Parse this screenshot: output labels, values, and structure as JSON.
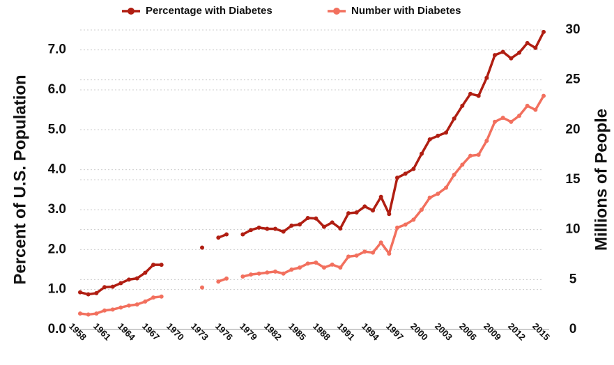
{
  "chart_data": {
    "type": "line",
    "y_label": "Percent of U.S. Population",
    "y2_label": "Millions of People",
    "x": [
      1958,
      1959,
      1960,
      1961,
      1962,
      1963,
      1964,
      1965,
      1966,
      1967,
      1968,
      1969,
      1970,
      1971,
      1972,
      1973,
      1974,
      1975,
      1976,
      1977,
      1978,
      1979,
      1980,
      1981,
      1982,
      1983,
      1984,
      1985,
      1986,
      1987,
      1988,
      1989,
      1990,
      1991,
      1992,
      1993,
      1994,
      1995,
      1996,
      1997,
      1998,
      1999,
      2000,
      2001,
      2002,
      2003,
      2004,
      2005,
      2006,
      2007,
      2008,
      2009,
      2010,
      2011,
      2012,
      2013,
      2014,
      2015
    ],
    "series": [
      {
        "name": "Percentage with Diabetes",
        "color": "#b01e12",
        "axis": "y",
        "values": [
          0.93,
          0.88,
          0.91,
          1.06,
          1.07,
          1.16,
          1.25,
          1.28,
          1.42,
          1.62,
          1.62,
          null,
          null,
          null,
          null,
          2.05,
          null,
          2.3,
          2.38,
          null,
          2.38,
          2.49,
          2.55,
          2.52,
          2.52,
          2.45,
          2.6,
          2.63,
          2.79,
          2.78,
          2.57,
          2.68,
          2.53,
          2.91,
          2.93,
          3.08,
          2.98,
          3.32,
          2.89,
          3.8,
          3.9,
          4.02,
          4.4,
          4.76,
          4.85,
          4.93,
          5.28,
          5.6,
          5.9,
          5.85,
          6.3,
          6.87,
          6.95,
          6.79,
          6.93,
          7.17,
          7.05,
          7.45
        ]
      },
      {
        "name": "Number with Diabetes",
        "color": "#f2705e",
        "axis": "y2",
        "values": [
          1.6,
          1.5,
          1.6,
          1.9,
          2.0,
          2.2,
          2.4,
          2.5,
          2.8,
          3.2,
          3.3,
          null,
          null,
          null,
          null,
          4.2,
          null,
          4.8,
          5.1,
          null,
          5.3,
          5.5,
          5.6,
          5.7,
          5.8,
          5.6,
          6.0,
          6.2,
          6.6,
          6.7,
          6.2,
          6.5,
          6.2,
          7.3,
          7.4,
          7.8,
          7.7,
          8.7,
          7.6,
          10.2,
          10.5,
          11.0,
          12.0,
          13.2,
          13.6,
          14.2,
          15.5,
          16.5,
          17.4,
          17.5,
          18.9,
          20.8,
          21.2,
          20.8,
          21.4,
          22.4,
          22.0,
          23.4
        ]
      }
    ],
    "xlim": [
      1958,
      2015
    ],
    "xticks": [
      1958,
      1961,
      1964,
      1967,
      1970,
      1973,
      1976,
      1979,
      1982,
      1985,
      1988,
      1991,
      1994,
      1997,
      2000,
      2003,
      2006,
      2009,
      2012,
      2015
    ],
    "ylim": [
      0,
      7.5
    ],
    "yticks": [
      {
        "value": 0,
        "label": "0.0"
      },
      {
        "value": 1,
        "label": "1.0"
      },
      {
        "value": 2,
        "label": "2.0"
      },
      {
        "value": 3,
        "label": "3.0"
      },
      {
        "value": 4,
        "label": "4.0"
      },
      {
        "value": 5,
        "label": "5.0"
      },
      {
        "value": 6,
        "label": "6.0"
      },
      {
        "value": 7,
        "label": "7.0"
      }
    ],
    "y2lim": [
      0,
      30
    ],
    "y2ticks": [
      0,
      5,
      10,
      15,
      20,
      25,
      30
    ],
    "grid": true,
    "legend": "top"
  }
}
